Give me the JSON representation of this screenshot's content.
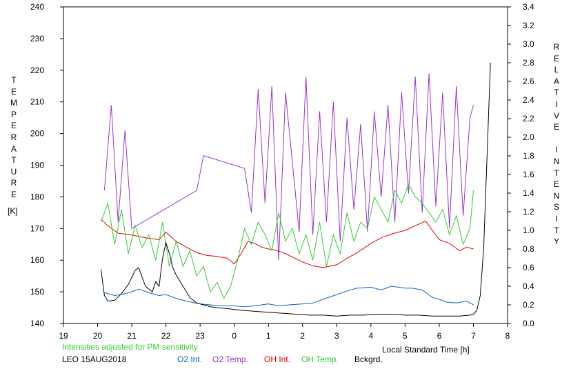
{
  "chart_data": {
    "type": "line",
    "xlabel": "Local Standard Time [h]",
    "ylabel_left": "TEMPERATURE",
    "ylabel_left_unit": "[K]",
    "ylabel_right": "RELATIVE INTENSITY",
    "x_ticks": [
      "19",
      "20",
      "21",
      "22",
      "23",
      "0",
      "1",
      "2",
      "3",
      "4",
      "5",
      "6",
      "7",
      "8"
    ],
    "xlim": [
      19,
      32
    ],
    "ylim_left": [
      140,
      240
    ],
    "y_ticks_left": [
      140,
      150,
      160,
      170,
      180,
      190,
      200,
      210,
      220,
      230,
      240
    ],
    "ylim_right": [
      0.0,
      3.4
    ],
    "y_ticks_right": [
      "0.0",
      "0.2",
      "0.4",
      "0.6",
      "0.8",
      "1.0",
      "1.2",
      "1.4",
      "1.6",
      "1.8",
      "2.0",
      "2.2",
      "2.4",
      "2.6",
      "2.8",
      "3.0",
      "3.2",
      "3.4"
    ],
    "grid": false,
    "series": [
      {
        "name": "O2 Int.",
        "axis": "right",
        "color": "#0066cc",
        "x": [
          20.2,
          20.5,
          20.8,
          21.0,
          21.2,
          21.5,
          21.8,
          22.0,
          22.3,
          22.6,
          23.0,
          23.3,
          23.6,
          24.0,
          24.3,
          24.6,
          25.0,
          25.3,
          25.6,
          26.0,
          26.3,
          26.6,
          27.0,
          27.3,
          27.6,
          28.0,
          28.3,
          28.6,
          29.0,
          29.2,
          29.5,
          29.8,
          30.0,
          30.2,
          30.5,
          30.8,
          31.0
        ],
        "y": [
          0.33,
          0.3,
          0.32,
          0.34,
          0.37,
          0.33,
          0.3,
          0.31,
          0.27,
          0.24,
          0.21,
          0.2,
          0.19,
          0.19,
          0.18,
          0.19,
          0.21,
          0.19,
          0.2,
          0.21,
          0.22,
          0.26,
          0.31,
          0.35,
          0.38,
          0.39,
          0.36,
          0.4,
          0.38,
          0.38,
          0.36,
          0.28,
          0.26,
          0.23,
          0.22,
          0.24,
          0.2
        ]
      },
      {
        "name": "O2 Temp.",
        "axis": "left",
        "color": "#9933cc",
        "x": [
          20.2,
          20.4,
          20.6,
          20.8,
          21.0,
          22.9,
          23.1,
          24.3,
          24.5,
          24.7,
          24.9,
          25.1,
          25.3,
          25.5,
          25.9,
          26.1,
          26.3,
          26.5,
          26.7,
          26.9,
          27.1,
          27.3,
          27.5,
          27.7,
          27.9,
          28.1,
          28.3,
          28.5,
          28.7,
          28.9,
          29.1,
          29.3,
          29.5,
          29.7,
          29.9,
          30.1,
          30.3,
          30.5,
          30.7,
          30.9,
          31.0
        ],
        "y": [
          182,
          209,
          172,
          201,
          170,
          182,
          193,
          189,
          175,
          214,
          178,
          215,
          160,
          213,
          169,
          218,
          168,
          207,
          172,
          210,
          166,
          205,
          176,
          203,
          169,
          207,
          180,
          209,
          172,
          213,
          181,
          218,
          175,
          219,
          177,
          213,
          170,
          215,
          174,
          205,
          209
        ]
      },
      {
        "name": "OH Int.",
        "axis": "right",
        "color": "#dd0000",
        "x": [
          20.1,
          20.3,
          20.6,
          21.0,
          21.4,
          21.8,
          22.0,
          22.3,
          22.6,
          22.9,
          23.2,
          23.5,
          23.8,
          24.0,
          24.2,
          24.4,
          24.6,
          24.8,
          25.0,
          25.2,
          25.5,
          26.0,
          26.3,
          26.6,
          27.0,
          27.3,
          27.6,
          28.0,
          28.3,
          28.6,
          29.0,
          29.3,
          29.6,
          30.0,
          30.3,
          30.6,
          30.8,
          31.0
        ],
        "y": [
          1.12,
          1.05,
          0.97,
          0.95,
          0.92,
          0.9,
          0.98,
          0.88,
          0.82,
          0.76,
          0.73,
          0.72,
          0.7,
          0.64,
          0.75,
          0.88,
          0.86,
          0.82,
          0.8,
          0.79,
          0.75,
          0.66,
          0.62,
          0.6,
          0.63,
          0.7,
          0.76,
          0.86,
          0.92,
          0.96,
          1.0,
          1.05,
          1.1,
          0.9,
          0.86,
          0.78,
          0.82,
          0.8
        ]
      },
      {
        "name": "OH Temp.",
        "axis": "left",
        "color": "#33cc33",
        "x": [
          20.1,
          20.3,
          20.5,
          20.7,
          20.9,
          21.1,
          21.3,
          21.5,
          21.7,
          21.9,
          22.1,
          22.3,
          22.5,
          22.7,
          22.9,
          23.1,
          23.3,
          23.5,
          23.7,
          23.9,
          24.1,
          24.3,
          24.5,
          24.7,
          24.9,
          25.1,
          25.3,
          25.5,
          25.7,
          25.9,
          26.1,
          26.3,
          26.5,
          26.7,
          26.9,
          27.1,
          27.3,
          27.5,
          27.7,
          27.9,
          28.1,
          28.3,
          28.5,
          28.7,
          28.9,
          29.1,
          29.3,
          29.5,
          29.7,
          29.9,
          30.1,
          30.3,
          30.5,
          30.7,
          30.9,
          31.0
        ],
        "y": [
          172,
          178,
          165,
          176,
          162,
          171,
          164,
          168,
          160,
          172,
          158,
          166,
          158,
          163,
          155,
          158,
          150,
          153,
          148,
          152,
          160,
          170,
          165,
          172,
          168,
          163,
          175,
          166,
          170,
          162,
          168,
          160,
          172,
          158,
          168,
          162,
          175,
          166,
          172,
          170,
          180,
          176,
          172,
          182,
          178,
          184,
          180,
          178,
          175,
          172,
          176,
          168,
          174,
          165,
          170,
          182
        ]
      },
      {
        "name": "Bckgrd.",
        "axis": "right",
        "color": "#000000",
        "x": [
          20.1,
          20.2,
          20.3,
          20.5,
          20.7,
          20.9,
          21.1,
          21.2,
          21.4,
          21.6,
          21.7,
          21.8,
          21.9,
          22.0,
          22.1,
          22.2,
          22.3,
          22.5,
          22.7,
          22.9,
          23.1,
          23.3,
          23.5,
          23.8,
          24.0,
          24.3,
          24.6,
          25.0,
          25.4,
          25.8,
          26.2,
          26.6,
          27.0,
          27.4,
          27.8,
          28.2,
          28.6,
          29.0,
          29.4,
          29.8,
          30.2,
          30.6,
          30.9,
          31.0,
          31.1,
          31.2,
          31.3,
          31.4,
          31.5
        ],
        "y": [
          0.58,
          0.3,
          0.24,
          0.25,
          0.32,
          0.42,
          0.57,
          0.6,
          0.4,
          0.34,
          0.45,
          0.4,
          0.7,
          0.87,
          0.75,
          0.6,
          0.52,
          0.4,
          0.28,
          0.22,
          0.2,
          0.18,
          0.17,
          0.16,
          0.15,
          0.14,
          0.13,
          0.12,
          0.11,
          0.1,
          0.09,
          0.09,
          0.08,
          0.09,
          0.09,
          0.1,
          0.1,
          0.09,
          0.09,
          0.08,
          0.08,
          0.08,
          0.09,
          0.1,
          0.14,
          0.3,
          0.8,
          1.8,
          2.8
        ]
      }
    ]
  },
  "annotations": {
    "sensitivity_note": "Intensities adjusted for PM sensitivity",
    "station_date": "LEO 15AUG2018"
  },
  "legend": [
    {
      "label": "O2 Int.",
      "color": "#0066cc"
    },
    {
      "label": "O2 Temp.",
      "color": "#9933cc"
    },
    {
      "label": "OH Int.",
      "color": "#dd0000"
    },
    {
      "label": "OH Temp.",
      "color": "#33cc33"
    },
    {
      "label": "Bckgrd.",
      "color": "#000000"
    }
  ]
}
